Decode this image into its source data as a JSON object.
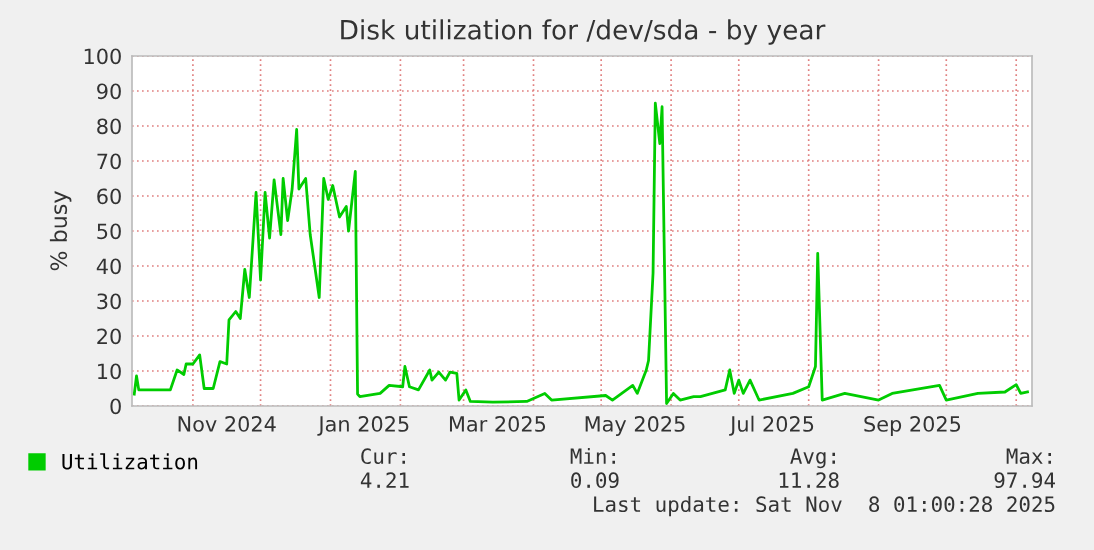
{
  "chart_data": {
    "type": "line",
    "title": "Disk utilization for /dev/sda - by year",
    "ylabel": "% busy",
    "xlim": [
      "2024-10-05",
      "2025-11-08"
    ],
    "xticks": [
      {
        "value": "2024-11-01",
        "label": null
      },
      {
        "value": "2024-11-16",
        "label": "Nov 2024"
      },
      {
        "value": "2024-12-01",
        "label": null
      },
      {
        "value": "2025-01-01",
        "label": null
      },
      {
        "value": "2025-01-16",
        "label": "Jan 2025"
      },
      {
        "value": "2025-02-01",
        "label": null
      },
      {
        "value": "2025-03-01",
        "label": null
      },
      {
        "value": "2025-03-16",
        "label": "Mar 2025"
      },
      {
        "value": "2025-04-01",
        "label": null
      },
      {
        "value": "2025-05-01",
        "label": null
      },
      {
        "value": "2025-05-16",
        "label": "May 2025"
      },
      {
        "value": "2025-06-01",
        "label": null
      },
      {
        "value": "2025-07-01",
        "label": null
      },
      {
        "value": "2025-07-16",
        "label": "Jul 2025"
      },
      {
        "value": "2025-08-01",
        "label": null
      },
      {
        "value": "2025-09-01",
        "label": null
      },
      {
        "value": "2025-09-16",
        "label": "Sep 2025"
      },
      {
        "value": "2025-10-01",
        "label": null
      },
      {
        "value": "2025-11-01",
        "label": null
      }
    ],
    "ylim": [
      0,
      100
    ],
    "yticks": [
      0,
      10,
      20,
      30,
      40,
      50,
      60,
      70,
      80,
      90,
      100
    ],
    "grid": true,
    "legend": "bottom left",
    "series": [
      {
        "name": "Utilization",
        "color": "#00cc00",
        "x": [
          "2024-10-06",
          "2024-10-07",
          "2024-10-08",
          "2024-10-14",
          "2024-10-22",
          "2024-10-25",
          "2024-10-28",
          "2024-10-29",
          "2024-11-01",
          "2024-11-04",
          "2024-11-06",
          "2024-11-10",
          "2024-11-13",
          "2024-11-16",
          "2024-11-17",
          "2024-11-20",
          "2024-11-22",
          "2024-11-24",
          "2024-11-26",
          "2024-11-28",
          "2024-11-29",
          "2024-12-01",
          "2024-12-03",
          "2024-12-05",
          "2024-12-07",
          "2024-12-10",
          "2024-12-11",
          "2024-12-13",
          "2024-12-15",
          "2024-12-17",
          "2024-12-18",
          "2024-12-21",
          "2024-12-23",
          "2024-12-27",
          "2024-12-29",
          "2024-12-31",
          "2025-01-02",
          "2025-01-05",
          "2025-01-08",
          "2025-01-09",
          "2025-01-12",
          "2025-01-13",
          "2025-01-14",
          "2025-01-23",
          "2025-01-27",
          "2025-02-02",
          "2025-02-03",
          "2025-02-05",
          "2025-02-09",
          "2025-02-14",
          "2025-02-15",
          "2025-02-18",
          "2025-02-21",
          "2025-02-23",
          "2025-02-26",
          "2025-02-27",
          "2025-03-02",
          "2025-03-04",
          "2025-03-14",
          "2025-03-29",
          "2025-04-06",
          "2025-04-09",
          "2025-05-03",
          "2025-05-06",
          "2025-05-15",
          "2025-05-17",
          "2025-05-21",
          "2025-05-22",
          "2025-05-24",
          "2025-05-25",
          "2025-05-27",
          "2025-05-28",
          "2025-05-30",
          "2025-06-02",
          "2025-06-05",
          "2025-06-11",
          "2025-06-14",
          "2025-06-25",
          "2025-06-27",
          "2025-06-29",
          "2025-07-01",
          "2025-07-03",
          "2025-07-06",
          "2025-07-10",
          "2025-07-25",
          "2025-08-01",
          "2025-08-04",
          "2025-08-05",
          "2025-08-07",
          "2025-08-17",
          "2025-09-01",
          "2025-09-07",
          "2025-09-28",
          "2025-10-01",
          "2025-10-15",
          "2025-10-27",
          "2025-11-01",
          "2025-11-03",
          "2025-11-06"
        ],
        "values": [
          3.4,
          8.6,
          4.6,
          4.6,
          4.6,
          10.3,
          9,
          12,
          12,
          14.6,
          5,
          5,
          12.7,
          12,
          24.6,
          27,
          25,
          39,
          31,
          51,
          61,
          36,
          61,
          48,
          64.6,
          49,
          65,
          53,
          62,
          79,
          62,
          65,
          49,
          31,
          65,
          59,
          63,
          54,
          57,
          50,
          67,
          3.4,
          2.7,
          3.6,
          5.9,
          5.5,
          11.3,
          5.5,
          4.6,
          10.3,
          7.4,
          9.7,
          7.4,
          9.7,
          9.3,
          1.7,
          4.6,
          1.3,
          1.1,
          1.3,
          3.6,
          1.7,
          3,
          1.7,
          5.9,
          3.6,
          10.3,
          13,
          38,
          86.5,
          75,
          85.5,
          0.7,
          3.6,
          1.7,
          2.7,
          2.7,
          4.6,
          10.3,
          3.6,
          7.4,
          3.6,
          7.4,
          1.7,
          3.6,
          5.5,
          11.3,
          43.6,
          1.7,
          3.6,
          1.7,
          3.6,
          5.9,
          1.7,
          3.6,
          4,
          6.1,
          3.6,
          4
        ]
      }
    ],
    "annotations": [
      "Cur:",
      "4.21",
      "Min:",
      "0.09",
      "Avg:",
      "11.28",
      "Max:",
      "97.94",
      "Last update: Sat Nov  8 01:00:28 2025"
    ]
  }
}
